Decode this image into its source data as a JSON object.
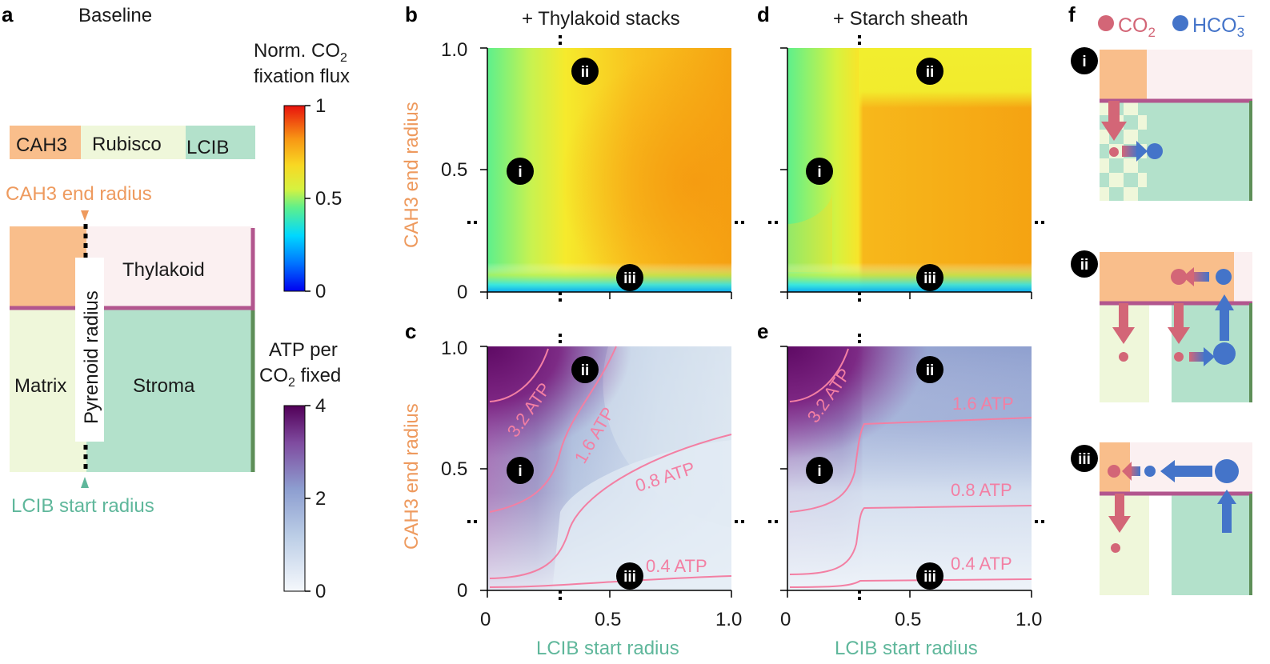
{
  "panel_labels": {
    "a": "a",
    "b": "b",
    "c": "c",
    "d": "d",
    "e": "e",
    "f": "f"
  },
  "panel_a": {
    "title": "Baseline",
    "bar_labels": [
      "CAH3",
      "Rubisco",
      "LCIB"
    ],
    "cah3_end_label": "CAH3 end radius",
    "lcib_start_label": "LCIB start radius",
    "regions": {
      "thylakoid": "Thylakoid",
      "matrix": "Matrix",
      "stroma": "Stroma",
      "pyrenoid_radius": "Pyrenoid radius"
    },
    "colors": {
      "cah3": "#F9BE8B",
      "rubisco": "#EFF7DA",
      "lcib": "#B3E1CB",
      "thylakoid_bg": "#FBF0F1",
      "membrane": "#B2568E",
      "stroma_edge": "#5E8F58"
    }
  },
  "colorbar_flux": {
    "title_line1": "Norm. CO",
    "title_sub": "2",
    "title_line2": "fixation flux",
    "ticks": [
      "1",
      "0.5",
      "0"
    ]
  },
  "colorbar_atp": {
    "title_line1": "ATP per",
    "title_line2a": "CO",
    "title_sub": "2",
    "title_line2b": " fixed",
    "ticks": [
      "4",
      "2",
      "0"
    ]
  },
  "heatmap_top_left_title": "+ Thylakoid stacks",
  "heatmap_top_right_title": "+ Starch sheath",
  "axes": {
    "ylabel": "CAH3 end radius",
    "xlabel": "LCIB start radius",
    "x_ticks": [
      "0",
      "0.5",
      "1.0"
    ],
    "y_ticks": [
      "1.0",
      "0.5",
      "0"
    ]
  },
  "badges": [
    "i",
    "ii",
    "iii"
  ],
  "contours_c": [
    "3.2 ATP",
    "1.6 ATP",
    "0.8 ATP",
    "0.4 ATP"
  ],
  "contours_e": [
    "3.2 ATP",
    "1.6 ATP",
    "0.8 ATP",
    "0.4 ATP"
  ],
  "panel_f": {
    "legend_co2": "CO",
    "legend_co2_sub": "2",
    "legend_hco3": "HCO",
    "legend_hco3_sub": "3",
    "legend_hco3_sup": "−",
    "co2_color": "#D36677",
    "hco3_color": "#4474C9"
  }
}
